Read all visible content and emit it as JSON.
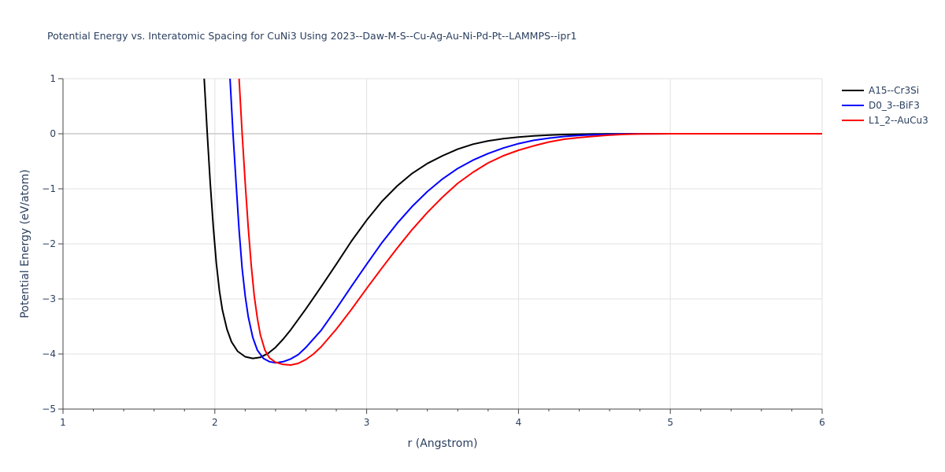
{
  "chart_data": {
    "type": "line",
    "title": "Potential Energy vs. Interatomic Spacing for CuNi3 Using 2023--Daw-M-S--Cu-Ag-Au-Ni-Pd-Pt--LAMMPS--ipr1",
    "xlabel": "r (Angstrom)",
    "ylabel": "Potential Energy (eV/atom)",
    "xlim": [
      1,
      6
    ],
    "ylim": [
      -5,
      1
    ],
    "x_ticks": [
      1,
      2,
      3,
      4,
      5,
      6
    ],
    "x_tick_labels": [
      "1",
      "2",
      "3",
      "4",
      "5",
      "6"
    ],
    "y_ticks": [
      -5,
      -4,
      -3,
      -2,
      -1,
      0,
      1
    ],
    "y_tick_labels": [
      "−5",
      "−4",
      "−3",
      "−2",
      "−1",
      "0",
      "1"
    ],
    "grid": true,
    "legend_position": "top-right",
    "series": [
      {
        "name": "A15--Cr3Si",
        "color": "#000000",
        "x": [
          1.93,
          1.95,
          1.97,
          1.99,
          2.01,
          2.03,
          2.05,
          2.08,
          2.11,
          2.15,
          2.2,
          2.25,
          2.3,
          2.35,
          2.4,
          2.45,
          2.5,
          2.6,
          2.7,
          2.8,
          2.9,
          3.0,
          3.1,
          3.2,
          3.3,
          3.4,
          3.5,
          3.6,
          3.7,
          3.8,
          3.9,
          4.0,
          4.1,
          4.2,
          4.3,
          4.4,
          4.5,
          4.6,
          4.7,
          4.8,
          4.9,
          5.0,
          5.5,
          6.0
        ],
        "y": [
          1.0,
          0.0,
          -0.9,
          -1.7,
          -2.35,
          -2.85,
          -3.2,
          -3.55,
          -3.78,
          -3.95,
          -4.05,
          -4.08,
          -4.06,
          -3.99,
          -3.88,
          -3.73,
          -3.56,
          -3.18,
          -2.78,
          -2.37,
          -1.95,
          -1.57,
          -1.23,
          -0.95,
          -0.72,
          -0.54,
          -0.4,
          -0.28,
          -0.19,
          -0.13,
          -0.09,
          -0.06,
          -0.04,
          -0.025,
          -0.015,
          -0.008,
          -0.004,
          -0.002,
          -0.001,
          0.0,
          0.0,
          0.0,
          0.0,
          0.0
        ]
      },
      {
        "name": "D0_3--BiF3",
        "color": "#0000ff",
        "x": [
          2.1,
          2.12,
          2.14,
          2.16,
          2.18,
          2.2,
          2.22,
          2.25,
          2.28,
          2.32,
          2.36,
          2.4,
          2.45,
          2.5,
          2.55,
          2.6,
          2.7,
          2.8,
          2.9,
          3.0,
          3.1,
          3.2,
          3.3,
          3.4,
          3.5,
          3.6,
          3.7,
          3.8,
          3.9,
          4.0,
          4.1,
          4.2,
          4.3,
          4.4,
          4.5,
          4.6,
          4.7,
          4.8,
          4.9,
          5.0,
          5.5,
          6.0
        ],
        "y": [
          1.0,
          0.0,
          -0.9,
          -1.75,
          -2.45,
          -2.95,
          -3.32,
          -3.7,
          -3.93,
          -4.08,
          -4.14,
          -4.16,
          -4.14,
          -4.09,
          -4.01,
          -3.88,
          -3.57,
          -3.18,
          -2.77,
          -2.37,
          -1.98,
          -1.63,
          -1.32,
          -1.05,
          -0.82,
          -0.63,
          -0.48,
          -0.36,
          -0.26,
          -0.18,
          -0.12,
          -0.08,
          -0.05,
          -0.03,
          -0.018,
          -0.01,
          -0.005,
          -0.002,
          -0.001,
          0.0,
          0.0,
          0.0
        ]
      },
      {
        "name": "L1_2--AuCu3",
        "color": "#ff0000",
        "x": [
          2.16,
          2.18,
          2.2,
          2.22,
          2.24,
          2.26,
          2.28,
          2.3,
          2.33,
          2.36,
          2.4,
          2.45,
          2.5,
          2.55,
          2.6,
          2.65,
          2.7,
          2.8,
          2.9,
          3.0,
          3.1,
          3.2,
          3.3,
          3.4,
          3.5,
          3.6,
          3.7,
          3.8,
          3.9,
          4.0,
          4.1,
          4.2,
          4.3,
          4.4,
          4.5,
          4.6,
          4.7,
          4.8,
          4.9,
          5.0,
          5.5,
          6.0
        ],
        "y": [
          1.0,
          0.0,
          -0.9,
          -1.7,
          -2.4,
          -2.95,
          -3.35,
          -3.65,
          -3.93,
          -4.07,
          -4.15,
          -4.19,
          -4.2,
          -4.17,
          -4.1,
          -4.0,
          -3.87,
          -3.55,
          -3.19,
          -2.81,
          -2.44,
          -2.08,
          -1.74,
          -1.43,
          -1.15,
          -0.9,
          -0.7,
          -0.53,
          -0.4,
          -0.3,
          -0.22,
          -0.15,
          -0.1,
          -0.07,
          -0.045,
          -0.025,
          -0.012,
          -0.005,
          -0.002,
          0.0,
          0.0,
          0.0
        ]
      }
    ]
  }
}
